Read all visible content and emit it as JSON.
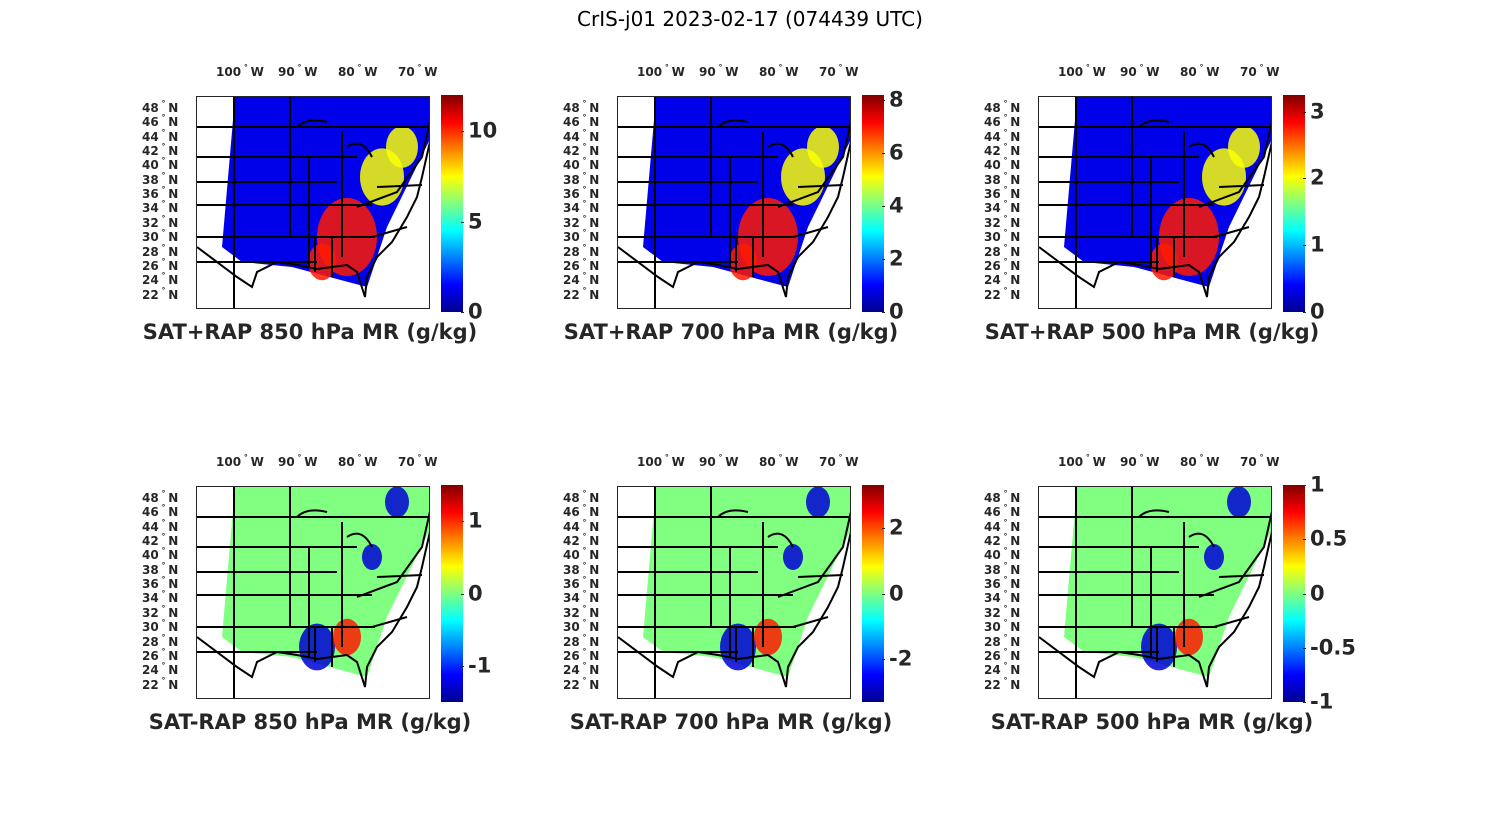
{
  "figure_title": "CrIS-j01 2023-02-17 (074439 UTC)",
  "chart_data": [
    {
      "type": "heatmap",
      "title": "SAT+RAP 850 hPa MR (g/kg)",
      "colormap": "jet",
      "clim": [
        0,
        12
      ],
      "colorbar_ticks": [
        "0",
        "5",
        "10"
      ],
      "colorbar_tick_values": [
        0,
        5,
        10
      ],
      "kind": "sum",
      "xlabel": "",
      "ylabel": "",
      "xticks": [
        "100",
        "90",
        "80",
        "70"
      ],
      "yticks": [
        "48",
        "46",
        "44",
        "42",
        "40",
        "38",
        "36",
        "34",
        "32",
        "30",
        "28",
        "26",
        "24",
        "22"
      ]
    },
    {
      "type": "heatmap",
      "title": "SAT+RAP 700 hPa MR (g/kg)",
      "colormap": "jet",
      "clim": [
        0,
        8.2
      ],
      "colorbar_ticks": [
        "0",
        "2",
        "4",
        "6",
        "8"
      ],
      "colorbar_tick_values": [
        0,
        2,
        4,
        6,
        8
      ],
      "kind": "sum",
      "xlabel": "",
      "ylabel": "",
      "xticks": [
        "100",
        "90",
        "80",
        "70"
      ],
      "yticks": [
        "48",
        "46",
        "44",
        "42",
        "40",
        "38",
        "36",
        "34",
        "32",
        "30",
        "28",
        "26",
        "24",
        "22"
      ]
    },
    {
      "type": "heatmap",
      "title": "SAT+RAP 500 hPa MR (g/kg)",
      "colormap": "jet",
      "clim": [
        0,
        3.25
      ],
      "colorbar_ticks": [
        "0",
        "1",
        "2",
        "3"
      ],
      "colorbar_tick_values": [
        0,
        1,
        2,
        3
      ],
      "kind": "sum",
      "xlabel": "",
      "ylabel": "",
      "xticks": [
        "100",
        "90",
        "80",
        "70"
      ],
      "yticks": [
        "48",
        "46",
        "44",
        "42",
        "40",
        "38",
        "36",
        "34",
        "32",
        "30",
        "28",
        "26",
        "24",
        "22"
      ]
    },
    {
      "type": "heatmap",
      "title": "SAT-RAP 850 hPa MR (g/kg)",
      "colormap": "jet",
      "clim": [
        -1.5,
        1.5
      ],
      "colorbar_ticks": [
        "-1",
        "0",
        "1"
      ],
      "colorbar_tick_values": [
        -1,
        0,
        1
      ],
      "kind": "diff",
      "xlabel": "",
      "ylabel": "",
      "xticks": [
        "100",
        "90",
        "80",
        "70"
      ],
      "yticks": [
        "48",
        "46",
        "44",
        "42",
        "40",
        "38",
        "36",
        "34",
        "32",
        "30",
        "28",
        "26",
        "24",
        "22"
      ]
    },
    {
      "type": "heatmap",
      "title": "SAT-RAP 700 hPa MR (g/kg)",
      "colormap": "jet",
      "clim": [
        -3.3,
        3.3
      ],
      "colorbar_ticks": [
        "-2",
        "0",
        "2"
      ],
      "colorbar_tick_values": [
        -2,
        0,
        2
      ],
      "kind": "diff",
      "xlabel": "",
      "ylabel": "",
      "xticks": [
        "100",
        "90",
        "80",
        "70"
      ],
      "yticks": [
        "48",
        "46",
        "44",
        "42",
        "40",
        "38",
        "36",
        "34",
        "32",
        "30",
        "28",
        "26",
        "24",
        "22"
      ]
    },
    {
      "type": "heatmap",
      "title": "SAT-RAP 500 hPa MR (g/kg)",
      "colormap": "jet",
      "clim": [
        -1,
        1
      ],
      "colorbar_ticks": [
        "-1",
        "-0.5",
        "0",
        "0.5",
        "1"
      ],
      "colorbar_tick_values": [
        -1,
        -0.5,
        0,
        0.5,
        1
      ],
      "kind": "diff",
      "xlabel": "",
      "ylabel": "",
      "xticks": [
        "100",
        "90",
        "80",
        "70"
      ],
      "yticks": [
        "48",
        "46",
        "44",
        "42",
        "40",
        "38",
        "36",
        "34",
        "32",
        "30",
        "28",
        "26",
        "24",
        "22"
      ]
    }
  ],
  "axis_units": {
    "lon": "W",
    "lat": "N",
    "degree": "°"
  }
}
